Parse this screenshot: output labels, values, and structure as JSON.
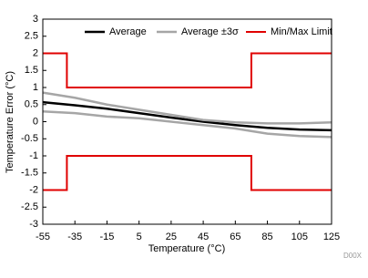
{
  "chart_data": {
    "type": "line",
    "xlabel": "Temperature (°C)",
    "ylabel": "Temperature Error (°C)",
    "watermark": "D00X",
    "x": [
      -55,
      -35,
      -15,
      5,
      25,
      45,
      65,
      85,
      105,
      125
    ],
    "series": [
      {
        "name": "Average",
        "color": "#000000",
        "width": 2.5,
        "values": [
          0.57,
          0.48,
          0.38,
          0.25,
          0.12,
          0.0,
          -0.1,
          -0.18,
          -0.23,
          -0.25
        ]
      },
      {
        "name": "Average ±3σ",
        "color": "#a6a6a6",
        "width": 2.5,
        "values": [
          0.85,
          0.7,
          0.5,
          0.35,
          0.2,
          0.05,
          -0.02,
          -0.05,
          -0.05,
          -0.02
        ],
        "values_lower": [
          0.3,
          0.25,
          0.15,
          0.1,
          0.0,
          -0.1,
          -0.2,
          -0.35,
          -0.42,
          -0.45
        ]
      },
      {
        "name": "Min/Max Limit",
        "color": "#e00000",
        "width": 2,
        "x": [
          -55,
          -40,
          -40,
          75,
          75,
          125
        ],
        "values": [
          2,
          2,
          1,
          1,
          2,
          2
        ],
        "values_lower": [
          -2,
          -2,
          -1,
          -1,
          -2,
          -2
        ]
      }
    ],
    "xlim": [
      -55,
      125
    ],
    "xticks": [
      -55,
      -35,
      -15,
      5,
      25,
      45,
      65,
      85,
      105,
      125
    ],
    "ylim": [
      -3,
      3
    ],
    "yticks": [
      3,
      2.5,
      2,
      1.5,
      1,
      0.5,
      0,
      -0.5,
      -1,
      -1.5,
      -2,
      -2.5,
      -3
    ],
    "grid": false,
    "legend": "top-right"
  }
}
